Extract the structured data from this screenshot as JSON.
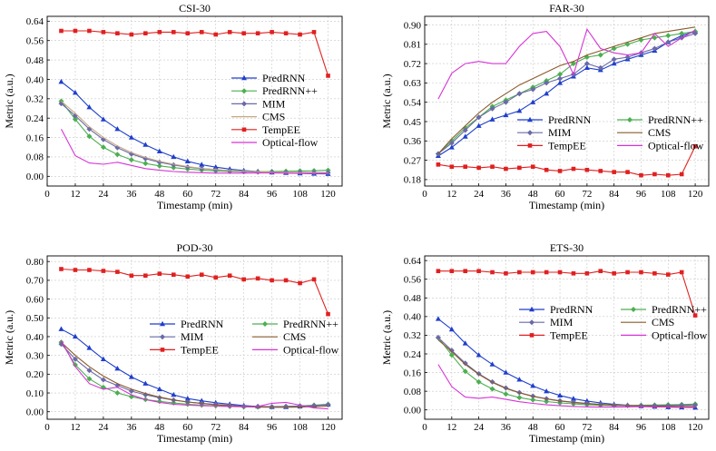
{
  "figure": {
    "x_label": "Timestamp (min)",
    "y_label": "Metric (a.u.)"
  },
  "chart_data": [
    {
      "type": "line",
      "title": "CSI-30",
      "xlabel": "Timestamp (min)",
      "ylabel": "Metric (a.u.)",
      "xlim": [
        0,
        126
      ],
      "ylim": [
        -0.04,
        0.66
      ],
      "xticks": [
        0,
        12,
        24,
        36,
        48,
        60,
        72,
        84,
        96,
        108,
        120
      ],
      "yticks": [
        0.0,
        0.08,
        0.16,
        0.24,
        0.32,
        0.4,
        0.48,
        0.56,
        0.64
      ],
      "legend": "right",
      "legend_columns": 1,
      "x": [
        6,
        12,
        18,
        24,
        30,
        36,
        42,
        48,
        54,
        60,
        66,
        72,
        78,
        84,
        90,
        96,
        102,
        108,
        114,
        120
      ],
      "series": [
        {
          "name": "PredRNN",
          "color": "#1f3fcc",
          "marker": "triangle",
          "values": [
            0.39,
            0.345,
            0.285,
            0.235,
            0.195,
            0.16,
            0.13,
            0.103,
            0.08,
            0.062,
            0.048,
            0.038,
            0.03,
            0.024,
            0.02,
            0.016,
            0.014,
            0.012,
            0.011,
            0.01
          ]
        },
        {
          "name": "PredRNN++",
          "color": "#4caf50",
          "marker": "diamond",
          "values": [
            0.31,
            0.235,
            0.165,
            0.12,
            0.09,
            0.068,
            0.053,
            0.043,
            0.036,
            0.03,
            0.026,
            0.022,
            0.02,
            0.019,
            0.019,
            0.02,
            0.021,
            0.022,
            0.023,
            0.025
          ]
        },
        {
          "name": "MIM",
          "color": "#6a6aa8",
          "marker": "diamond",
          "values": [
            0.3,
            0.25,
            0.195,
            0.152,
            0.118,
            0.092,
            0.073,
            0.058,
            0.047,
            0.038,
            0.032,
            0.027,
            0.023,
            0.02,
            0.018,
            0.017,
            0.016,
            0.016,
            0.015,
            0.015
          ]
        },
        {
          "name": "CMS",
          "color": "#c8a882",
          "marker": "none",
          "values": [
            0.31,
            0.26,
            0.205,
            0.16,
            0.125,
            0.098,
            0.078,
            0.062,
            0.05,
            0.04,
            0.033,
            0.028,
            0.024,
            0.021,
            0.019,
            0.017,
            0.016,
            0.015,
            0.015,
            0.014
          ]
        },
        {
          "name": "TempEE",
          "color": "#e02020",
          "marker": "square",
          "values": [
            0.6,
            0.6,
            0.6,
            0.595,
            0.59,
            0.585,
            0.59,
            0.595,
            0.595,
            0.59,
            0.595,
            0.585,
            0.595,
            0.59,
            0.59,
            0.595,
            0.59,
            0.585,
            0.595,
            0.415
          ]
        },
        {
          "name": "Optical-flow",
          "color": "#d633d6",
          "marker": "none",
          "values": [
            0.195,
            0.085,
            0.055,
            0.05,
            0.058,
            0.045,
            0.032,
            0.025,
            0.02,
            0.017,
            0.015,
            0.013,
            0.013,
            0.013,
            0.014,
            0.014,
            0.013,
            0.012,
            0.012,
            0.012
          ]
        }
      ]
    },
    {
      "type": "line",
      "title": "FAR-30",
      "xlabel": "Timestamp (min)",
      "ylabel": "Metric (a.u.)",
      "xlim": [
        0,
        126
      ],
      "ylim": [
        0.15,
        0.94
      ],
      "xticks": [
        0,
        12,
        24,
        36,
        48,
        60,
        72,
        84,
        96,
        108,
        120
      ],
      "yticks": [
        0.18,
        0.27,
        0.36,
        0.45,
        0.54,
        0.63,
        0.72,
        0.81,
        0.9
      ],
      "legend": "lower-right",
      "legend_columns": 2,
      "x": [
        6,
        12,
        18,
        24,
        30,
        36,
        42,
        48,
        54,
        60,
        66,
        72,
        78,
        84,
        90,
        96,
        102,
        108,
        114,
        120
      ],
      "series": [
        {
          "name": "PredRNN",
          "color": "#1f3fcc",
          "marker": "triangle",
          "values": [
            0.29,
            0.33,
            0.38,
            0.43,
            0.46,
            0.48,
            0.5,
            0.54,
            0.58,
            0.63,
            0.66,
            0.7,
            0.69,
            0.72,
            0.74,
            0.76,
            0.78,
            0.82,
            0.85,
            0.87
          ]
        },
        {
          "name": "PredRNN++",
          "color": "#4caf50",
          "marker": "diamond",
          "values": [
            0.3,
            0.36,
            0.42,
            0.47,
            0.52,
            0.55,
            0.58,
            0.61,
            0.64,
            0.67,
            0.72,
            0.75,
            0.76,
            0.79,
            0.81,
            0.83,
            0.84,
            0.85,
            0.86,
            0.87
          ]
        },
        {
          "name": "MIM",
          "color": "#6a6aa8",
          "marker": "diamond",
          "values": [
            0.3,
            0.35,
            0.41,
            0.47,
            0.51,
            0.54,
            0.58,
            0.6,
            0.63,
            0.65,
            0.67,
            0.72,
            0.7,
            0.74,
            0.75,
            0.77,
            0.79,
            0.82,
            0.84,
            0.86
          ]
        },
        {
          "name": "CMS",
          "color": "#8b5a2b",
          "marker": "none",
          "values": [
            0.3,
            0.37,
            0.43,
            0.49,
            0.54,
            0.58,
            0.62,
            0.65,
            0.68,
            0.71,
            0.73,
            0.76,
            0.78,
            0.8,
            0.82,
            0.84,
            0.86,
            0.87,
            0.88,
            0.89
          ]
        },
        {
          "name": "TempEE",
          "color": "#e02020",
          "marker": "square",
          "values": [
            0.25,
            0.24,
            0.24,
            0.235,
            0.24,
            0.23,
            0.235,
            0.24,
            0.225,
            0.22,
            0.23,
            0.225,
            0.22,
            0.215,
            0.215,
            0.2,
            0.205,
            0.2,
            0.205,
            0.335
          ]
        },
        {
          "name": "Optical-flow",
          "color": "#d633d6",
          "marker": "none",
          "values": [
            0.555,
            0.675,
            0.72,
            0.73,
            0.72,
            0.72,
            0.8,
            0.86,
            0.87,
            0.8,
            0.67,
            0.88,
            0.79,
            0.77,
            0.76,
            0.77,
            0.86,
            0.8,
            0.84,
            0.875
          ]
        }
      ]
    },
    {
      "type": "line",
      "title": "POD-30",
      "xlabel": "Timestamp (min)",
      "ylabel": "Metric (a.u.)",
      "xlim": [
        0,
        126
      ],
      "ylim": [
        -0.04,
        0.83
      ],
      "xticks": [
        0,
        12,
        24,
        36,
        48,
        60,
        72,
        84,
        96,
        108,
        120
      ],
      "yticks": [
        0.0,
        0.1,
        0.2,
        0.3,
        0.4,
        0.5,
        0.6,
        0.7,
        0.8
      ],
      "legend": "center",
      "legend_columns": 2,
      "x": [
        6,
        12,
        18,
        24,
        30,
        36,
        42,
        48,
        54,
        60,
        66,
        72,
        78,
        84,
        90,
        96,
        102,
        108,
        114,
        120
      ],
      "series": [
        {
          "name": "PredRNN",
          "color": "#1f3fcc",
          "marker": "triangle",
          "values": [
            0.44,
            0.4,
            0.34,
            0.28,
            0.23,
            0.185,
            0.15,
            0.12,
            0.09,
            0.07,
            0.058,
            0.048,
            0.04,
            0.033,
            0.028,
            0.025,
            0.025,
            0.028,
            0.033,
            0.038
          ]
        },
        {
          "name": "PredRNN++",
          "color": "#4caf50",
          "marker": "diamond",
          "values": [
            0.37,
            0.25,
            0.175,
            0.13,
            0.1,
            0.08,
            0.065,
            0.055,
            0.047,
            0.04,
            0.035,
            0.031,
            0.028,
            0.026,
            0.025,
            0.026,
            0.028,
            0.031,
            0.035,
            0.04
          ]
        },
        {
          "name": "MIM",
          "color": "#6a6aa8",
          "marker": "diamond",
          "values": [
            0.36,
            0.28,
            0.22,
            0.17,
            0.14,
            0.11,
            0.09,
            0.075,
            0.062,
            0.052,
            0.045,
            0.039,
            0.034,
            0.03,
            0.028,
            0.027,
            0.028,
            0.03,
            0.033,
            0.037
          ]
        },
        {
          "name": "CMS",
          "color": "#8b5a2b",
          "marker": "none",
          "values": [
            0.37,
            0.3,
            0.24,
            0.19,
            0.15,
            0.12,
            0.097,
            0.078,
            0.063,
            0.052,
            0.044,
            0.037,
            0.032,
            0.028,
            0.025,
            0.024,
            0.024,
            0.025,
            0.027,
            0.03
          ]
        },
        {
          "name": "TempEE",
          "color": "#e02020",
          "marker": "square",
          "values": [
            0.76,
            0.755,
            0.755,
            0.75,
            0.745,
            0.725,
            0.725,
            0.735,
            0.73,
            0.72,
            0.73,
            0.715,
            0.725,
            0.705,
            0.71,
            0.7,
            0.7,
            0.685,
            0.705,
            0.52
          ]
        },
        {
          "name": "Optical-flow",
          "color": "#d633d6",
          "marker": "none",
          "values": [
            0.38,
            0.24,
            0.15,
            0.12,
            0.13,
            0.09,
            0.065,
            0.05,
            0.04,
            0.035,
            0.032,
            0.03,
            0.028,
            0.027,
            0.028,
            0.045,
            0.05,
            0.035,
            0.02,
            0.015
          ]
        }
      ]
    },
    {
      "type": "line",
      "title": "ETS-30",
      "xlabel": "Timestamp (min)",
      "ylabel": "Metric (a.u.)",
      "xlim": [
        0,
        126
      ],
      "ylim": [
        -0.04,
        0.66
      ],
      "xticks": [
        0,
        12,
        24,
        36,
        48,
        60,
        72,
        84,
        96,
        108,
        120
      ],
      "yticks": [
        0.0,
        0.08,
        0.16,
        0.24,
        0.32,
        0.4,
        0.48,
        0.56,
        0.64
      ],
      "legend": "center-right",
      "legend_columns": 2,
      "x": [
        6,
        12,
        18,
        24,
        30,
        36,
        42,
        48,
        54,
        60,
        66,
        72,
        78,
        84,
        90,
        96,
        102,
        108,
        114,
        120
      ],
      "series": [
        {
          "name": "PredRNN",
          "color": "#1f3fcc",
          "marker": "triangle",
          "values": [
            0.39,
            0.345,
            0.285,
            0.235,
            0.195,
            0.16,
            0.13,
            0.103,
            0.08,
            0.062,
            0.048,
            0.038,
            0.03,
            0.024,
            0.02,
            0.016,
            0.014,
            0.012,
            0.011,
            0.01
          ]
        },
        {
          "name": "PredRNN++",
          "color": "#4caf50",
          "marker": "diamond",
          "values": [
            0.31,
            0.235,
            0.165,
            0.12,
            0.09,
            0.068,
            0.053,
            0.043,
            0.036,
            0.03,
            0.026,
            0.022,
            0.02,
            0.019,
            0.019,
            0.02,
            0.021,
            0.022,
            0.023,
            0.025
          ]
        },
        {
          "name": "MIM",
          "color": "#6a6aa8",
          "marker": "diamond",
          "values": [
            0.31,
            0.255,
            0.2,
            0.155,
            0.12,
            0.094,
            0.074,
            0.059,
            0.048,
            0.039,
            0.033,
            0.028,
            0.024,
            0.021,
            0.019,
            0.018,
            0.018,
            0.019,
            0.02,
            0.021
          ]
        },
        {
          "name": "CMS",
          "color": "#8b5a2b",
          "marker": "none",
          "values": [
            0.3,
            0.25,
            0.195,
            0.152,
            0.118,
            0.092,
            0.073,
            0.058,
            0.047,
            0.038,
            0.032,
            0.027,
            0.023,
            0.02,
            0.018,
            0.017,
            0.016,
            0.016,
            0.015,
            0.015
          ]
        },
        {
          "name": "TempEE",
          "color": "#e02020",
          "marker": "square",
          "values": [
            0.595,
            0.595,
            0.595,
            0.595,
            0.59,
            0.585,
            0.59,
            0.59,
            0.59,
            0.59,
            0.585,
            0.585,
            0.595,
            0.585,
            0.59,
            0.59,
            0.585,
            0.58,
            0.59,
            0.405
          ]
        },
        {
          "name": "Optical-flow",
          "color": "#d633d6",
          "marker": "none",
          "values": [
            0.195,
            0.1,
            0.055,
            0.05,
            0.055,
            0.045,
            0.035,
            0.028,
            0.022,
            0.018,
            0.015,
            0.013,
            0.012,
            0.012,
            0.013,
            0.014,
            0.013,
            0.012,
            0.011,
            0.011
          ]
        }
      ]
    }
  ]
}
